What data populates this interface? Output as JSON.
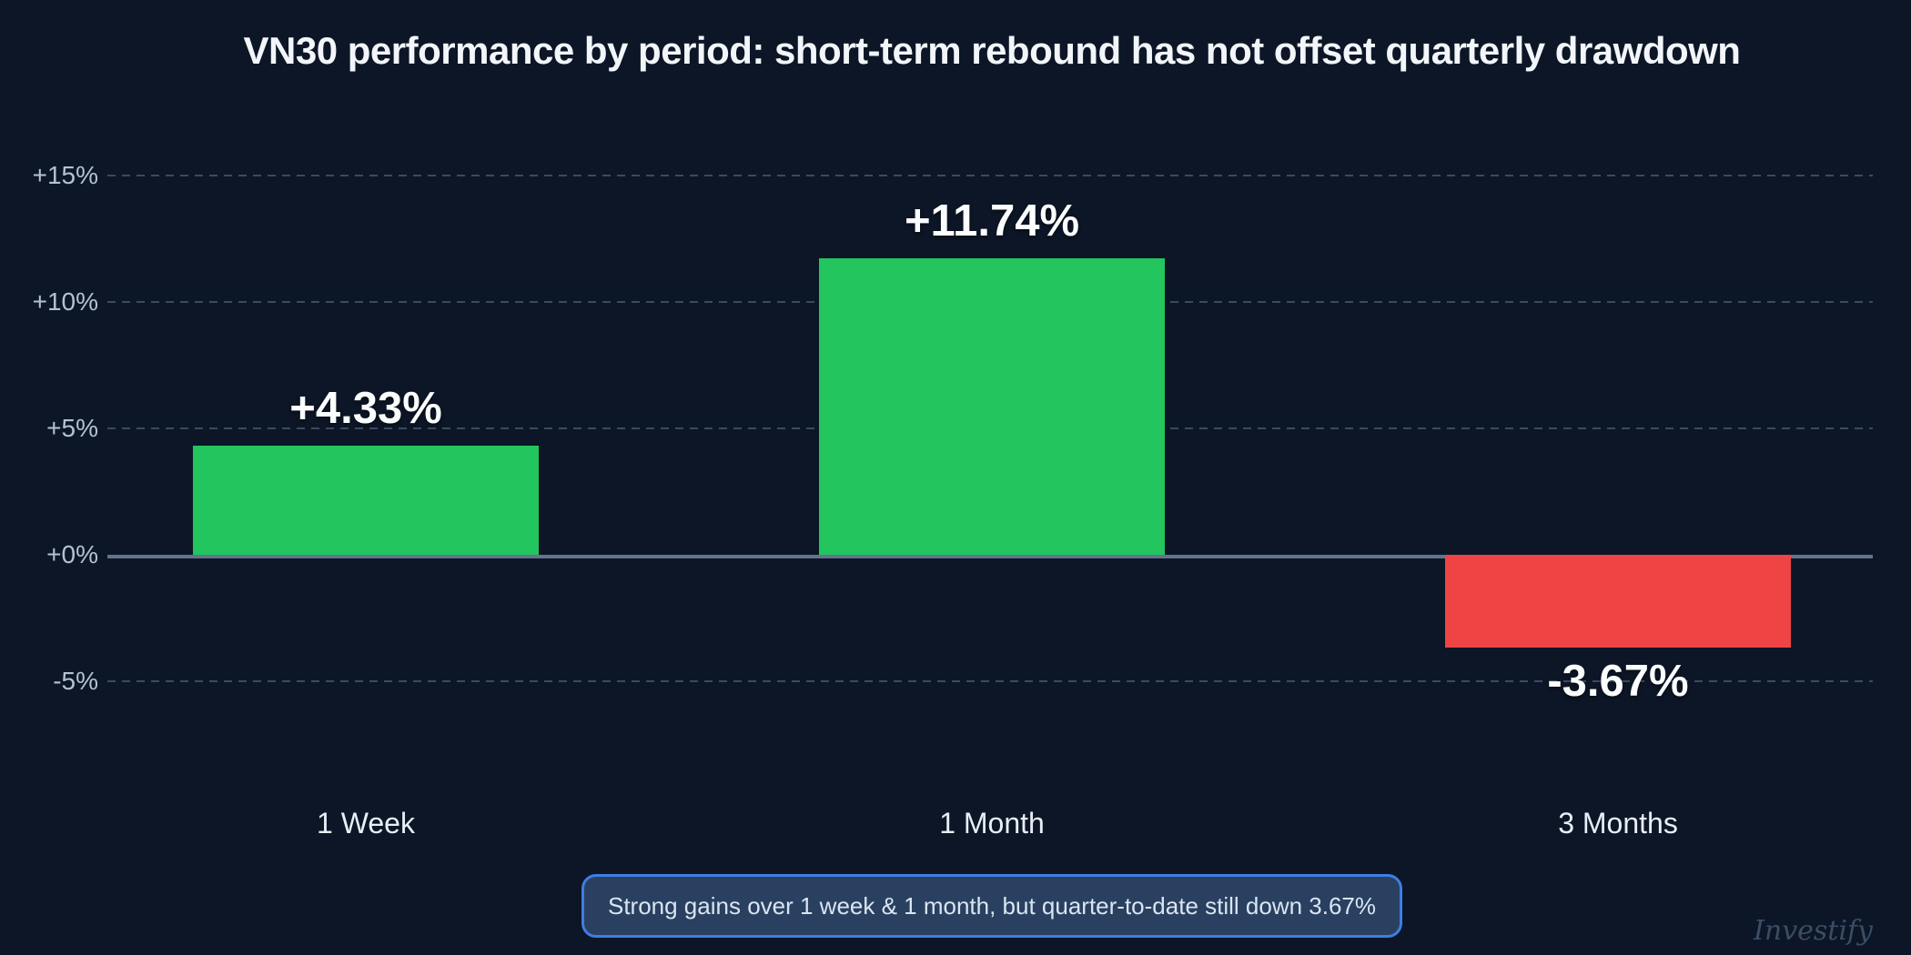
{
  "title": "VN30 performance by period: short-term rebound has not offset quarterly drawdown",
  "annotation": "Strong gains over 1 week & 1 month, but quarter-to-date still down 3.67%",
  "watermark": "Investify",
  "colors": {
    "background": "#0c1626",
    "positive_bar": "#22c55e",
    "negative_bar": "#ef4444",
    "gridline": "#4b5c73",
    "zero_line": "#63748b",
    "tick_label": "#b4c1d2",
    "category_label": "#e8eef6",
    "value_label": "#fbfdfe",
    "annotation_border": "#3e7ee4",
    "annotation_background": "#2a4060",
    "annotation_text": "#d9e5f2",
    "title_text": "#f2f6fa",
    "watermark_text": "#3b4d66"
  },
  "chart_data": {
    "type": "bar",
    "title": "VN30 performance by period: short-term rebound has not offset quarterly drawdown",
    "categories": [
      "1 Week",
      "1 Month",
      "3 Months"
    ],
    "values": [
      4.33,
      11.74,
      -3.67
    ],
    "value_labels": [
      "+4.33%",
      "+11.74%",
      "-3.67%"
    ],
    "bar_colors": [
      "#22c55e",
      "#22c55e",
      "#ef4444"
    ],
    "xlabel": "",
    "ylabel": "",
    "y_ticks": [
      {
        "value": 15,
        "label": "+15%"
      },
      {
        "value": 10,
        "label": "+10%"
      },
      {
        "value": 5,
        "label": "+5%"
      },
      {
        "value": 0,
        "label": "+0%"
      },
      {
        "value": -5,
        "label": "-5%"
      }
    ],
    "ylim": [
      -8,
      17
    ],
    "grid": "horizontal-dashed",
    "legend": "none",
    "annotation": "Strong gains over 1 week & 1 month, but quarter-to-date still down 3.67%",
    "watermark": "Investify"
  }
}
